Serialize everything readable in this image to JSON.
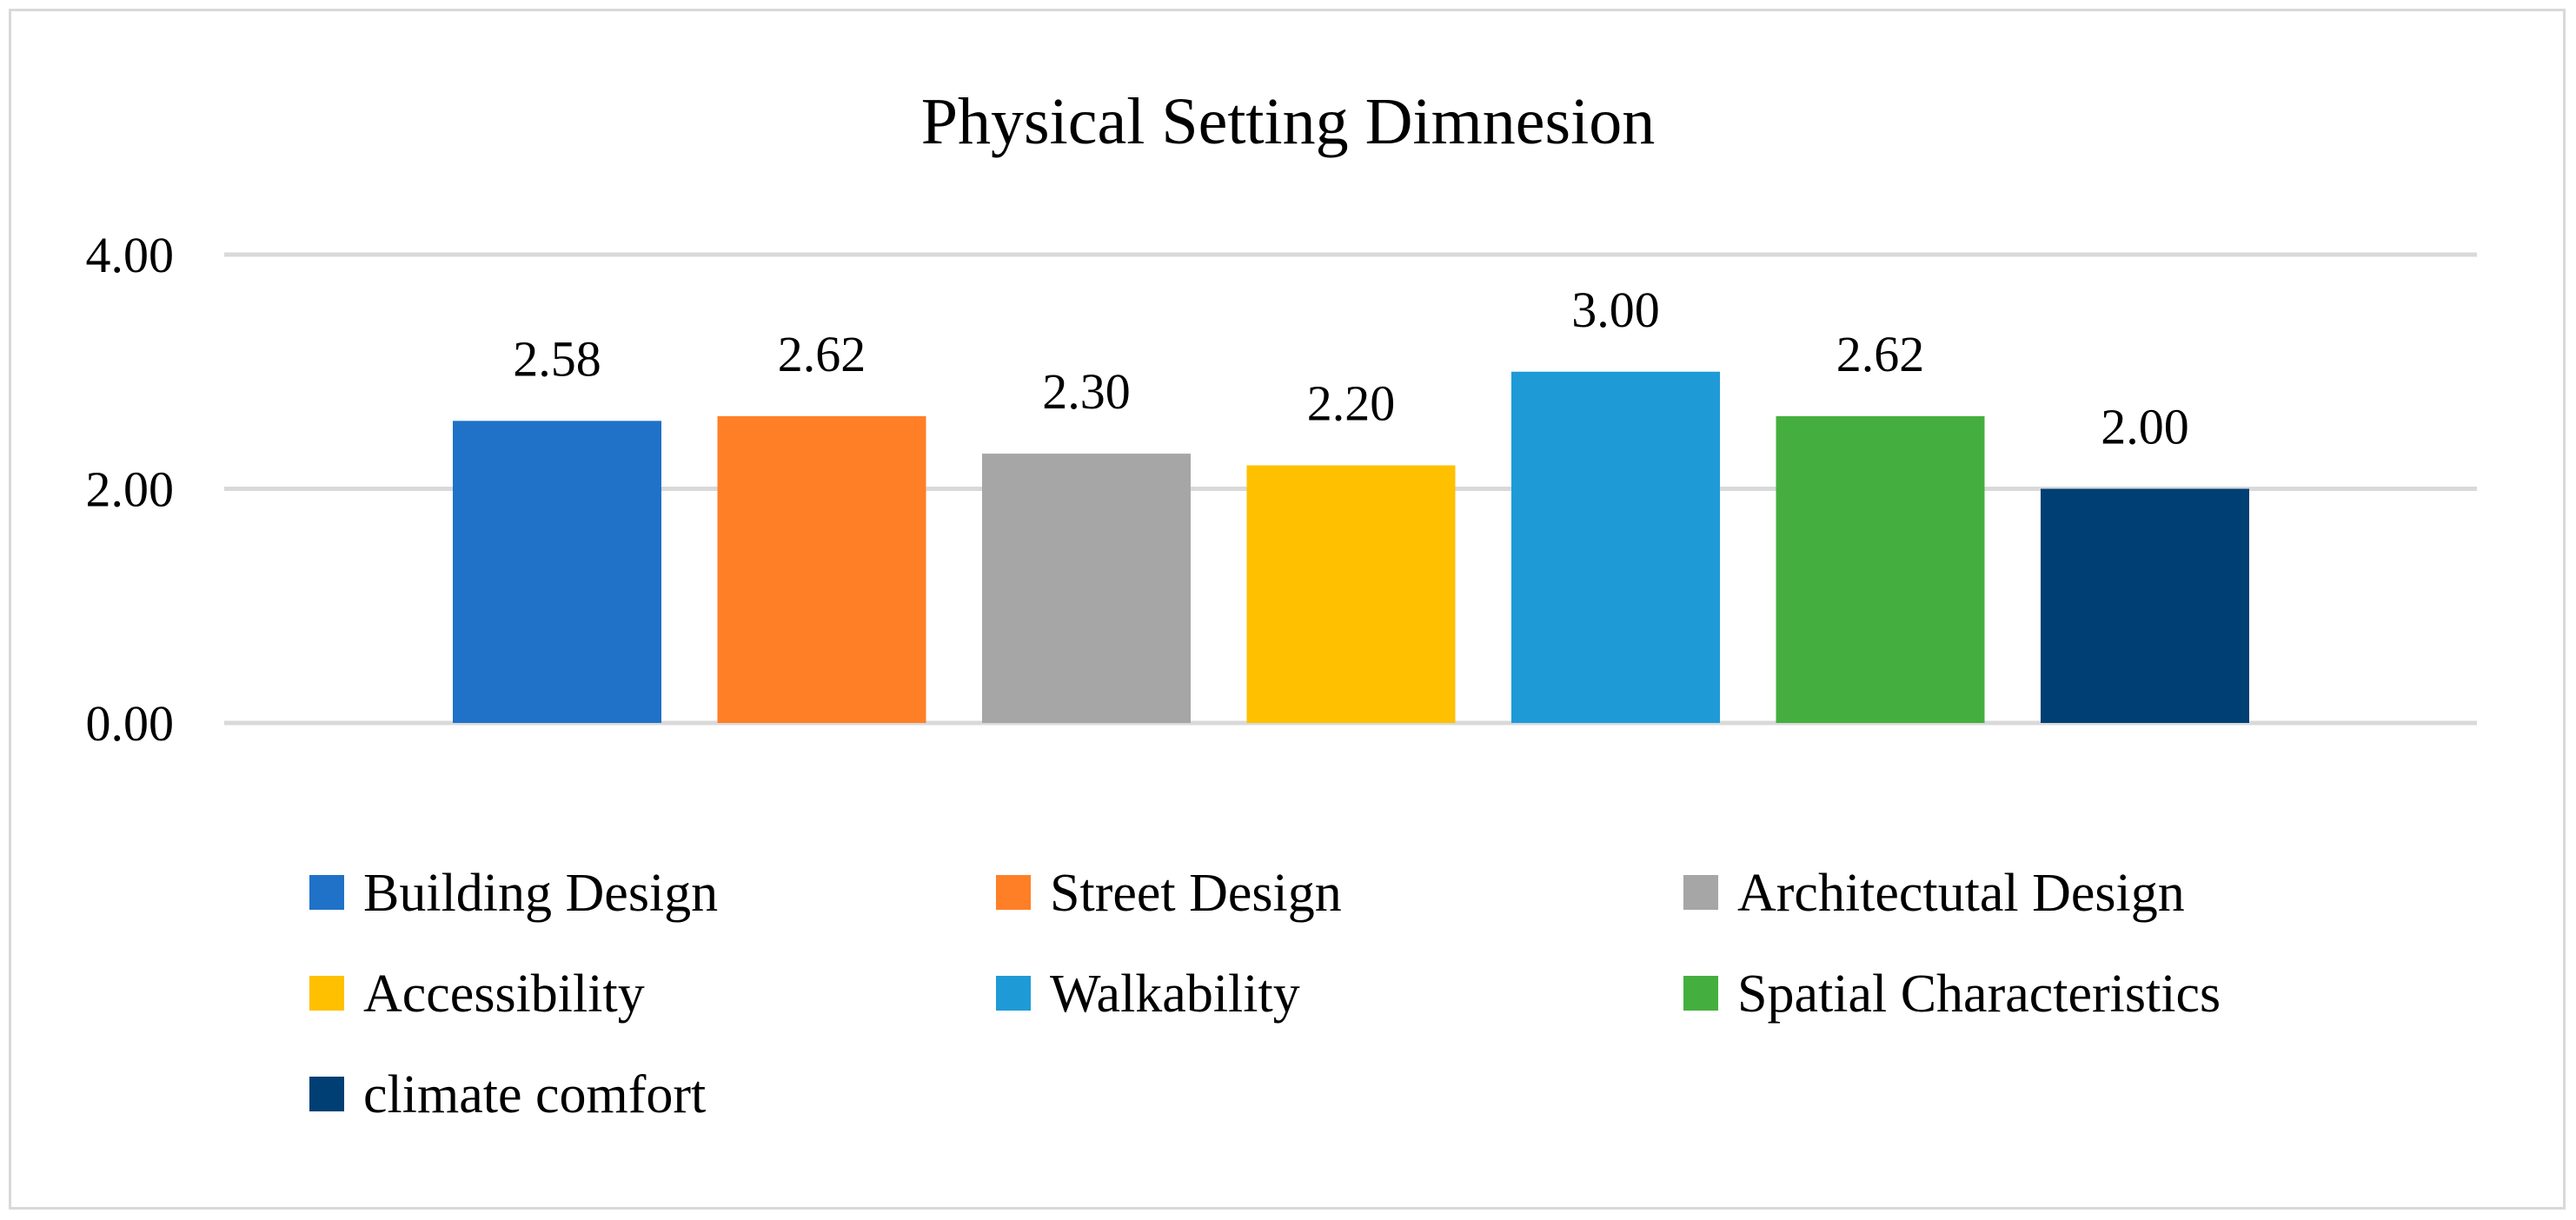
{
  "chart_data": {
    "type": "bar",
    "title": "Physical Setting Dimnesion",
    "xlabel": "",
    "ylabel": "",
    "ylim": [
      0,
      4
    ],
    "yticks": [
      0,
      2,
      4
    ],
    "ytick_labels": [
      "0.00",
      "2.00",
      "4.00"
    ],
    "grid": true,
    "legend_position": "bottom",
    "series": [
      {
        "name": "Building Design",
        "value": 2.58,
        "label": "2.58",
        "color": "#1F72C8"
      },
      {
        "name": "Street Design",
        "value": 2.62,
        "label": "2.62",
        "color": "#FF7F27"
      },
      {
        "name": "Architectutal Design",
        "value": 2.3,
        "label": "2.30",
        "color": "#A6A6A6"
      },
      {
        "name": "Accessibility",
        "value": 2.2,
        "label": "2.20",
        "color": "#FFC000"
      },
      {
        "name": "Walkability",
        "value": 3.0,
        "label": "3.00",
        "color": "#1E9BD7"
      },
      {
        "name": "Spatial Characteristics",
        "value": 2.62,
        "label": "2.62",
        "color": "#44AF3E"
      },
      {
        "name": "climate comfort",
        "value": 2.0,
        "label": "2.00",
        "color": "#003F74"
      }
    ],
    "colors": {
      "gridline": "#d9d9d9",
      "text": "#000000",
      "frame": "#d9d9d9"
    }
  }
}
